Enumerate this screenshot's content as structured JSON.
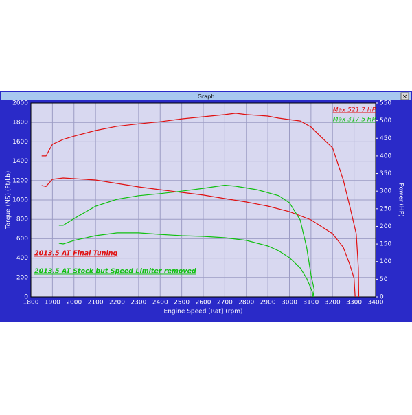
{
  "chart_data": {
    "type": "line",
    "window_title": "Graph",
    "xlabel": "Engine Speed [Rat] (rpm)",
    "ylabel": "Torque (NS) (Ft/Lb)",
    "y2label": "Power (HP)",
    "xlim": [
      1800,
      3400
    ],
    "xticks": [
      1800,
      1900,
      2000,
      2100,
      2200,
      2300,
      2400,
      2500,
      2600,
      2700,
      2800,
      2900,
      3000,
      3100,
      3200,
      3300,
      3400
    ],
    "ylim": [
      0,
      2000
    ],
    "yticks": [
      0,
      200,
      400,
      600,
      800,
      1000,
      1200,
      1400,
      1600,
      1800,
      2000
    ],
    "y2lim": [
      0,
      550
    ],
    "y2ticks": [
      0,
      50,
      100,
      150,
      200,
      250,
      300,
      350,
      400,
      450,
      500,
      550
    ],
    "grid": true,
    "series": [
      {
        "name": "2013.5 AT Final Tuning",
        "color": "#e01010",
        "x": [
          1850,
          1870,
          1900,
          1950,
          2000,
          2100,
          2200,
          2300,
          2400,
          2500,
          2600,
          2700,
          2800,
          2900,
          3000,
          3100,
          3200,
          3250,
          3280,
          3300,
          3305
        ],
        "values": [
          1149,
          1140,
          1213,
          1227,
          1220,
          1206,
          1170,
          1135,
          1106,
          1078,
          1050,
          1014,
          979,
          936,
          879,
          794,
          652,
          511,
          333,
          191,
          0
        ]
      },
      {
        "annotation": "Max 521.7 HP",
        "color": "#e01010",
        "axis": "y2",
        "x": [
          1850,
          1870,
          1900,
          1950,
          2000,
          2100,
          2200,
          2300,
          2400,
          2500,
          2600,
          2700,
          2750,
          2800,
          2900,
          2950,
          3000,
          3050,
          3100,
          3150,
          3200,
          3250,
          3280,
          3310,
          3320,
          3322
        ],
        "values": [
          400,
          400,
          433,
          447,
          456,
          472,
          484,
          491,
          497,
          505,
          511,
          517,
          521,
          517,
          513,
          507,
          503,
          499,
          482,
          452,
          423,
          332,
          257,
          179,
          82,
          0
        ]
      },
      {
        "name": "2013.5 AT Stock but Speed Limiter removed",
        "color": "#10c010",
        "x": [
          1930,
          1950,
          2000,
          2100,
          2200,
          2300,
          2400,
          2500,
          2600,
          2700,
          2800,
          2900,
          2950,
          3000,
          3050,
          3080,
          3100,
          3110,
          3105
        ],
        "values": [
          553,
          546,
          582,
          631,
          660,
          660,
          645,
          631,
          624,
          610,
          582,
          525,
          475,
          404,
          298,
          191,
          85,
          30,
          0
        ]
      },
      {
        "annotation": "Max 317.5 HP",
        "color": "#10c010",
        "axis": "y2",
        "x": [
          1930,
          1950,
          2000,
          2100,
          2200,
          2300,
          2400,
          2500,
          2600,
          2700,
          2750,
          2850,
          2950,
          3000,
          3050,
          3080,
          3100,
          3115,
          3110
        ],
        "values": [
          203,
          203,
          222,
          257,
          277,
          287,
          293,
          300,
          308,
          317,
          314,
          304,
          287,
          267,
          218,
          140,
          62,
          20,
          0
        ]
      }
    ]
  }
}
